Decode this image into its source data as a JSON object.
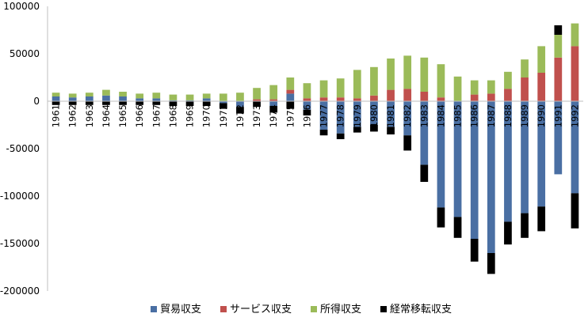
{
  "chart_data": {
    "type": "bar",
    "stacked": true,
    "title": "",
    "xlabel": "",
    "ylabel": "",
    "ylim": [
      -200000,
      100000
    ],
    "yticks": [
      100000,
      50000,
      0,
      -50000,
      -100000,
      -150000,
      -200000
    ],
    "ytick_labels": [
      "100000",
      "50000",
      "0",
      "-50000",
      "-100000",
      "-150000",
      "-200000"
    ],
    "grid": false,
    "legend_position": "bottom",
    "categories": [
      "1961",
      "1962",
      "1963",
      "1964",
      "1965",
      "1966",
      "1967",
      "1968",
      "1969",
      "1970",
      "1971",
      "1972",
      "1973",
      "1974",
      "1975",
      "1976",
      "1977",
      "1978",
      "1979",
      "1980",
      "1981",
      "1982",
      "1983",
      "1984",
      "1985",
      "1986",
      "1987",
      "1988",
      "1989",
      "1990",
      "1991",
      "1992"
    ],
    "series": [
      {
        "name": "貿易収支",
        "color": "#4a6fa3",
        "values": [
          5000,
          4000,
          5000,
          6000,
          5000,
          3000,
          3000,
          1000,
          1000,
          3000,
          -2000,
          -6000,
          0,
          -5000,
          8000,
          -9000,
          -30000,
          -34000,
          -27000,
          -25000,
          -27000,
          -36000,
          -67000,
          -112000,
          -122000,
          -145000,
          -160000,
          -127000,
          -118000,
          -111000,
          -77000,
          -97000
        ]
      },
      {
        "name": "サービス収支",
        "color": "#c0504d",
        "values": [
          0,
          0,
          0,
          0,
          0,
          0,
          0,
          0,
          0,
          0,
          0,
          0,
          2000,
          2000,
          4000,
          3000,
          4000,
          4000,
          3000,
          6000,
          12000,
          13000,
          10000,
          4000,
          0,
          7000,
          8000,
          13000,
          25000,
          30000,
          46000,
          58000
        ]
      },
      {
        "name": "所得収支",
        "color": "#9bbb59",
        "values": [
          4000,
          4000,
          4000,
          6000,
          5000,
          5000,
          6000,
          6000,
          6000,
          5000,
          8000,
          9000,
          12000,
          15000,
          13000,
          16000,
          18000,
          20000,
          30000,
          30000,
          33000,
          35000,
          36000,
          35000,
          26000,
          15000,
          14000,
          18000,
          19000,
          28000,
          24000,
          24000
        ]
      },
      {
        "name": "経常移転収支",
        "color": "#000000",
        "values": [
          -4000,
          -4000,
          -4000,
          -4000,
          -4000,
          -4000,
          -4000,
          -5000,
          -5000,
          -5000,
          -6000,
          -7000,
          -6000,
          -7000,
          -8000,
          -6000,
          -6000,
          -6000,
          -6000,
          -7000,
          -8000,
          -16000,
          -18000,
          -21000,
          -22000,
          -24000,
          -22000,
          -24000,
          -26000,
          -26000,
          10000,
          -37000
        ]
      }
    ]
  }
}
